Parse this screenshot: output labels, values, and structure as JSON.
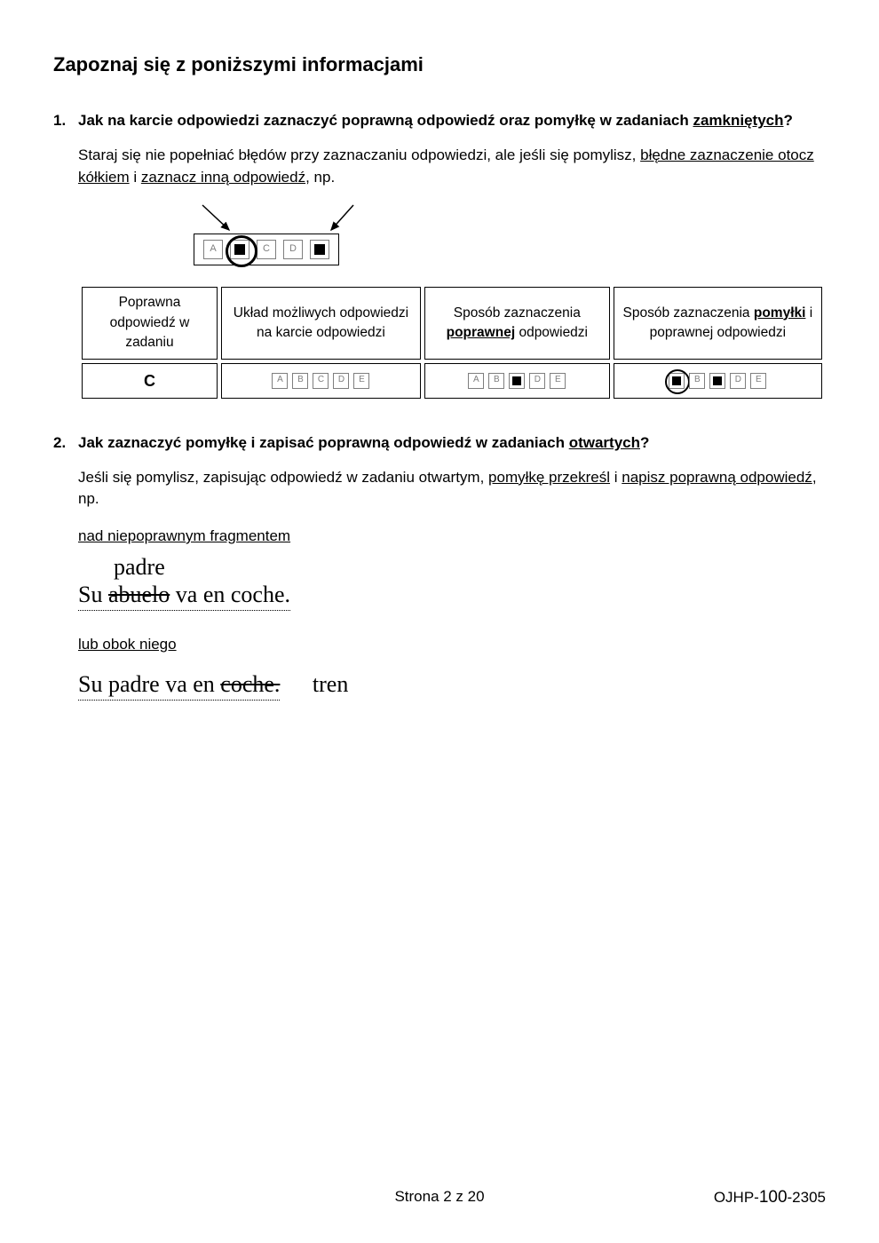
{
  "title": "Zapoznaj się z poniższymi informacjami",
  "items": [
    {
      "num": "1.",
      "heading_parts": [
        {
          "t": "Jak na karcie odpowiedzi zaznaczyć poprawną odpowiedź oraz pomyłkę w zadaniach ",
          "u": false
        },
        {
          "t": "zamkniętych",
          "u": true
        },
        {
          "t": "?",
          "u": false
        }
      ],
      "para_parts": [
        {
          "t": "Staraj się nie popełniać błędów przy zaznaczaniu odpowiedzi, ale jeśli się pomylisz, ",
          "u": false
        },
        {
          "t": "błędne zaznaczenie otocz kółkiem",
          "u": true
        },
        {
          "t": " i ",
          "u": false
        },
        {
          "t": "zaznacz inną odpowiedź",
          "u": true
        },
        {
          "t": ", np.",
          "u": false
        }
      ],
      "demo_options": [
        "A",
        "B",
        "C",
        "D",
        "E"
      ],
      "demo_filled": [
        1,
        4
      ],
      "demo_circled": [
        1
      ],
      "table": {
        "headers": [
          [
            {
              "t": "Poprawna odpowiedź w zadaniu"
            }
          ],
          [
            {
              "t": "Układ możliwych odpowiedzi na karcie odpowiedzi"
            }
          ],
          [
            {
              "t": "Sposób zaznaczenia "
            },
            {
              "t": "poprawnej",
              "b": true,
              "u": true
            },
            {
              "t": " odpowiedzi"
            }
          ],
          [
            {
              "t": "Sposób zaznaczenia "
            },
            {
              "t": "pomyłki",
              "b": true,
              "u": true
            },
            {
              "t": " i poprawnej odpowiedzi"
            }
          ]
        ],
        "row": {
          "answer": "C",
          "col2": {
            "labels": [
              "A",
              "B",
              "C",
              "D",
              "E"
            ],
            "filled": [],
            "circled": []
          },
          "col3": {
            "labels": [
              "A",
              "B",
              "C",
              "D",
              "E"
            ],
            "filled": [
              2
            ],
            "circled": []
          },
          "col4": {
            "labels": [
              "A",
              "B",
              "C",
              "D",
              "E"
            ],
            "filled": [
              0,
              2
            ],
            "circled": [
              0
            ]
          }
        }
      }
    },
    {
      "num": "2.",
      "heading_parts": [
        {
          "t": "Jak zaznaczyć pomyłkę i zapisać poprawną odpowiedź w zadaniach ",
          "u": false
        },
        {
          "t": "otwartych",
          "u": true
        },
        {
          "t": "?",
          "u": false
        }
      ],
      "para_parts": [
        {
          "t": "Jeśli się pomylisz, zapisując odpowiedź w zadaniu otwartym, ",
          "u": false
        },
        {
          "t": "pomyłkę przekreśl",
          "u": true
        },
        {
          "t": " i ",
          "u": false
        },
        {
          "t": "napisz poprawną odpowiedź",
          "u": true
        },
        {
          "t": ", np.",
          "u": false
        }
      ],
      "ex1_label": "nad niepoprawnym fragmentem",
      "ex1_above": "padre",
      "ex1_line": {
        "pre": "Su ",
        "strike": "abuelo",
        "post": " va en coche."
      },
      "ex2_label": "lub obok niego",
      "ex2_line": {
        "pre": "Su padre va en ",
        "strike": "coche.",
        "post": ""
      },
      "ex2_beside": "tren"
    }
  ],
  "footer": {
    "center": "Strona 2 z 20",
    "right_pre": "OJHP-",
    "right_big": "100",
    "right_post": "-2305"
  },
  "colors": {
    "text": "#000000",
    "box_border": "#7e7e7e",
    "bg": "#ffffff"
  }
}
